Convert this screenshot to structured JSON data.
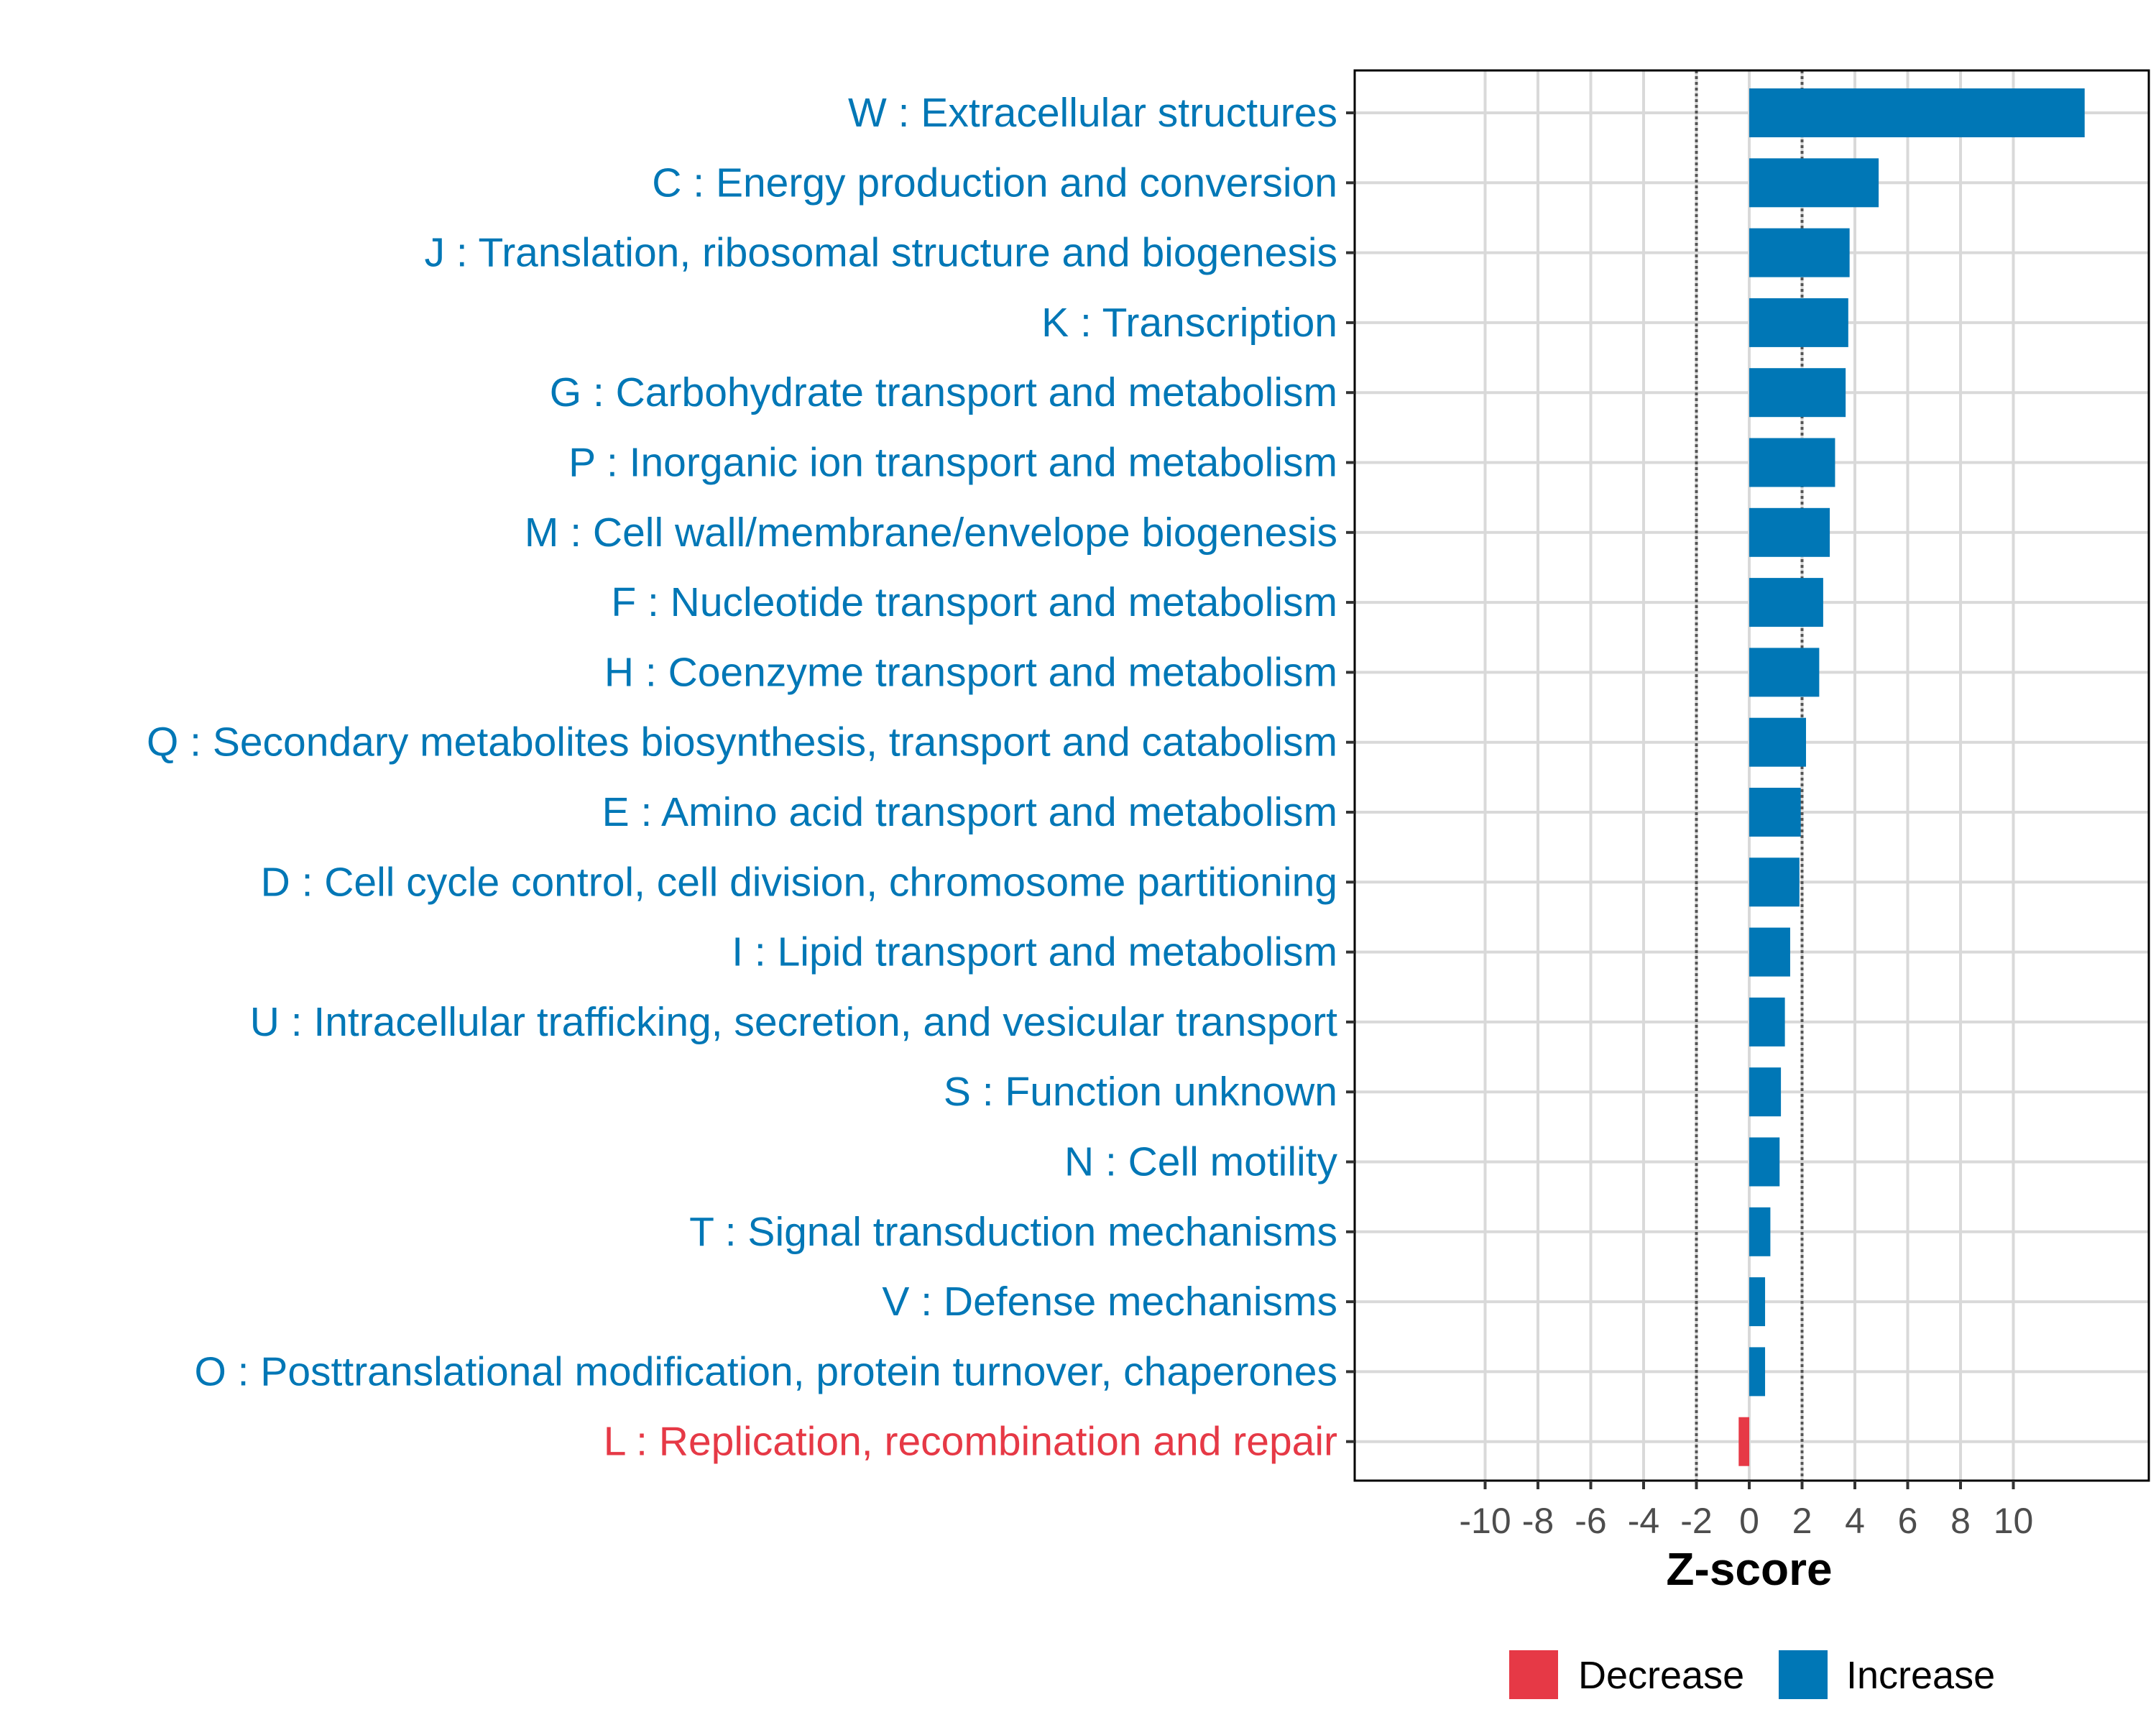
{
  "chart_data": {
    "type": "bar",
    "orientation": "horizontal",
    "title": "",
    "xlabel": "Z-score",
    "ylabel": "",
    "xlim": [
      -15,
      15
    ],
    "xticks": [
      -10,
      -8,
      -6,
      -4,
      -2,
      0,
      2,
      4,
      6,
      8,
      10
    ],
    "xtick_labels": [
      "-10",
      "-8",
      "-6",
      "-4",
      "-2",
      "0",
      "2",
      "4",
      "6",
      "8",
      "10"
    ],
    "reference_lines": [
      -2,
      2
    ],
    "grid": true,
    "legend_position": "bottom",
    "legend": [
      {
        "label": "Decrease",
        "color": "#E63946"
      },
      {
        "label": "Increase",
        "color": "#0077B6"
      }
    ],
    "categories": [
      "W : Extracellular structures",
      "C : Energy production and conversion",
      "J : Translation, ribosomal structure and biogenesis",
      "K : Transcription",
      "G : Carbohydrate transport and metabolism",
      "P : Inorganic ion transport and metabolism",
      "M : Cell wall/membrane/envelope biogenesis",
      "F : Nucleotide transport and metabolism",
      "H : Coenzyme transport and metabolism",
      "Q : Secondary metabolites biosynthesis, transport and catabolism",
      "E : Amino acid transport and metabolism",
      "D : Cell cycle control, cell division, chromosome partitioning",
      "I : Lipid transport and metabolism",
      "U : Intracellular trafficking, secretion, and vesicular transport",
      "S : Function unknown",
      "N : Cell motility",
      "T : Signal transduction mechanisms",
      "V : Defense mechanisms",
      "O : Posttranslational modification, protein turnover, chaperones",
      "L : Replication, recombination and repair"
    ],
    "values": [
      12.7,
      4.9,
      3.8,
      3.75,
      3.65,
      3.25,
      3.05,
      2.8,
      2.65,
      2.15,
      1.95,
      1.9,
      1.55,
      1.35,
      1.2,
      1.15,
      0.8,
      0.6,
      0.6,
      -0.4
    ],
    "directions": [
      "Increase",
      "Increase",
      "Increase",
      "Increase",
      "Increase",
      "Increase",
      "Increase",
      "Increase",
      "Increase",
      "Increase",
      "Increase",
      "Increase",
      "Increase",
      "Increase",
      "Increase",
      "Increase",
      "Increase",
      "Increase",
      "Increase",
      "Decrease"
    ]
  }
}
